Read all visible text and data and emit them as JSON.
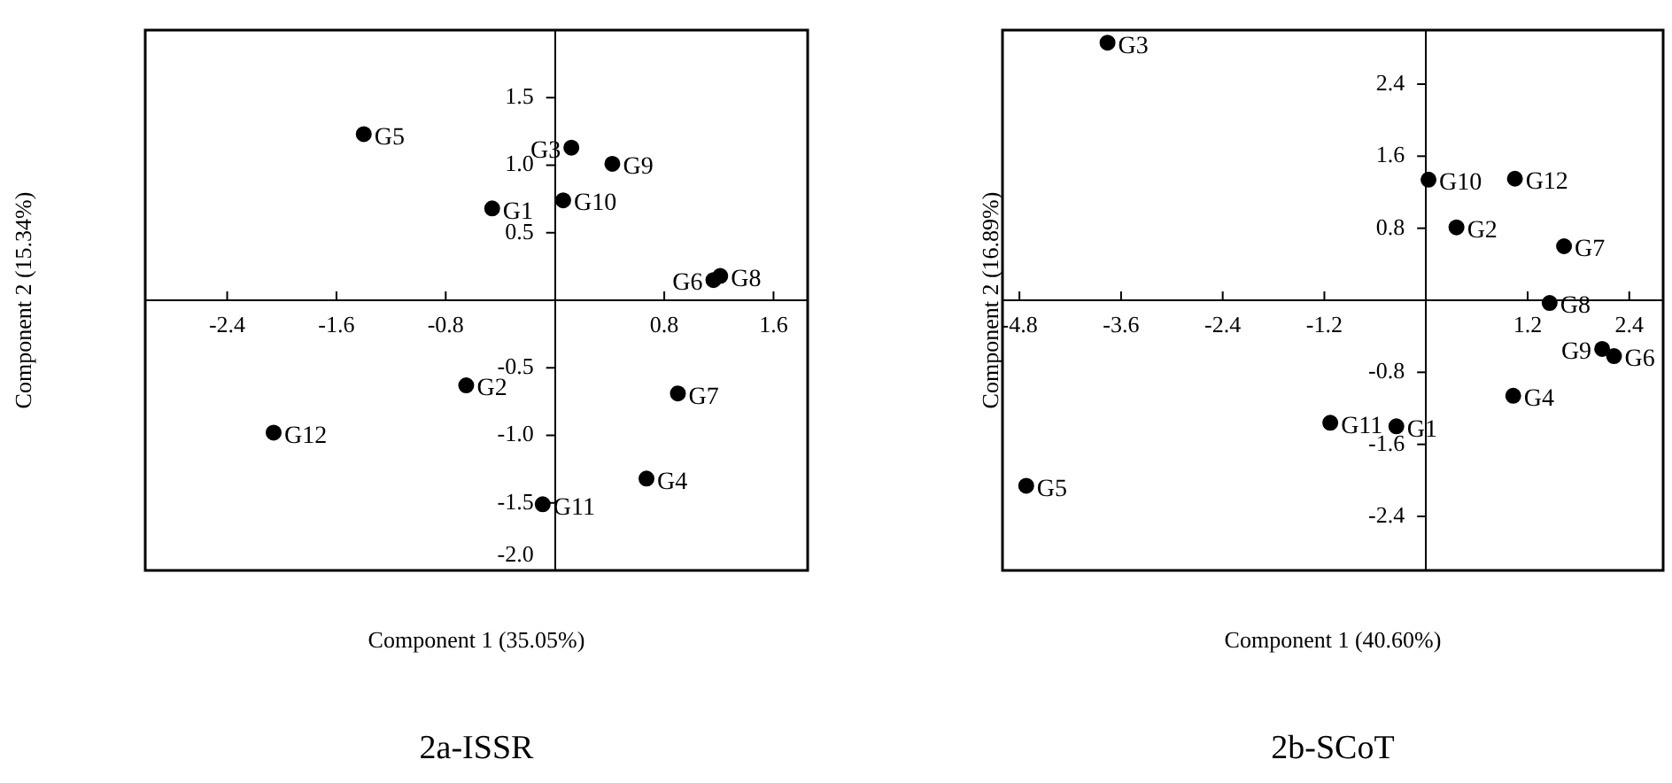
{
  "chart_data": [
    {
      "type": "scatter",
      "title": "2a-ISSR",
      "xlabel": "Component 1 (35.05%)",
      "ylabel": "Component 2 (15.34%)",
      "color": "#000000",
      "marker": "circle",
      "x": [
        -0.46,
        -0.65,
        0.12,
        0.67,
        -1.4,
        1.16,
        0.9,
        1.21,
        0.42,
        0.06,
        -0.09,
        -2.06
      ],
      "values": [
        0.68,
        -0.63,
        1.13,
        -1.32,
        1.23,
        0.15,
        -0.69,
        0.18,
        1.01,
        0.74,
        -1.51,
        -0.98
      ],
      "xlim": [
        -3.0,
        1.85
      ],
      "ylim": [
        -2.0,
        2.0
      ],
      "xticks": [
        -2.4,
        -1.6,
        -0.8,
        0.8,
        1.6
      ],
      "yticks": [
        1.5,
        {
          "value": 1.0,
          "label": "1.0"
        },
        0.5,
        -0.5,
        {
          "value": -1.0,
          "label": "-1.0"
        },
        -1.5,
        {
          "value": -2.0,
          "label": "-2.0"
        }
      ],
      "annotations": [
        {
          "text": "G1",
          "x": -0.46,
          "y": 0.68
        },
        {
          "text": "G2",
          "x": -0.65,
          "y": -0.63
        },
        {
          "text": "G3",
          "x": 0.12,
          "y": 1.13
        },
        {
          "text": "G4",
          "x": 0.67,
          "y": -1.32
        },
        {
          "text": "G5",
          "x": -1.4,
          "y": 1.23
        },
        {
          "text": "G6",
          "x": 1.16,
          "y": 0.15
        },
        {
          "text": "G7",
          "x": 0.9,
          "y": -0.69
        },
        {
          "text": "G8",
          "x": 1.21,
          "y": 0.18
        },
        {
          "text": "G9",
          "x": 0.42,
          "y": 1.01
        },
        {
          "text": "G10",
          "x": 0.06,
          "y": 0.74
        },
        {
          "text": "G11",
          "x": -0.09,
          "y": -1.51
        },
        {
          "text": "G12",
          "x": -2.06,
          "y": -0.98
        }
      ]
    },
    {
      "type": "scatter",
      "title": "2b-SCoT",
      "xlabel": "Component 1 (40.60%)",
      "ylabel": "Component 2 (16.89%)",
      "color": "#000000",
      "marker": "circle",
      "x": [
        -0.35,
        0.36,
        -3.76,
        1.03,
        -4.72,
        2.22,
        1.63,
        1.46,
        2.08,
        0.03,
        -1.13,
        1.05
      ],
      "values": [
        -1.4,
        0.81,
        2.86,
        -1.06,
        -2.06,
        -0.62,
        0.6,
        -0.03,
        -0.54,
        1.34,
        -1.36,
        1.35
      ],
      "xlim": [
        -5.0,
        2.8
      ],
      "ylim": [
        -3.0,
        3.0
      ],
      "xticks": [
        -4.8,
        -3.6,
        -2.4,
        -1.2,
        1.2,
        2.4
      ],
      "yticks": [
        2.4,
        1.6,
        0.8,
        -0.8,
        -1.6,
        -2.4
      ],
      "annotations": [
        {
          "text": "G1",
          "x": -0.35,
          "y": -1.4
        },
        {
          "text": "G2",
          "x": 0.36,
          "y": 0.81
        },
        {
          "text": "G3",
          "x": -3.76,
          "y": 2.86
        },
        {
          "text": "G4",
          "x": 1.03,
          "y": -1.06
        },
        {
          "text": "G5",
          "x": -4.72,
          "y": -2.06
        },
        {
          "text": "G6",
          "x": 2.22,
          "y": -0.62
        },
        {
          "text": "G7",
          "x": 1.63,
          "y": 0.6
        },
        {
          "text": "G8",
          "x": 1.46,
          "y": -0.03
        },
        {
          "text": "G9",
          "x": 2.08,
          "y": -0.54
        },
        {
          "text": "G10",
          "x": 0.03,
          "y": 1.34
        },
        {
          "text": "G11",
          "x": -1.13,
          "y": -1.36
        },
        {
          "text": "G12",
          "x": 1.05,
          "y": 1.35
        }
      ]
    }
  ]
}
